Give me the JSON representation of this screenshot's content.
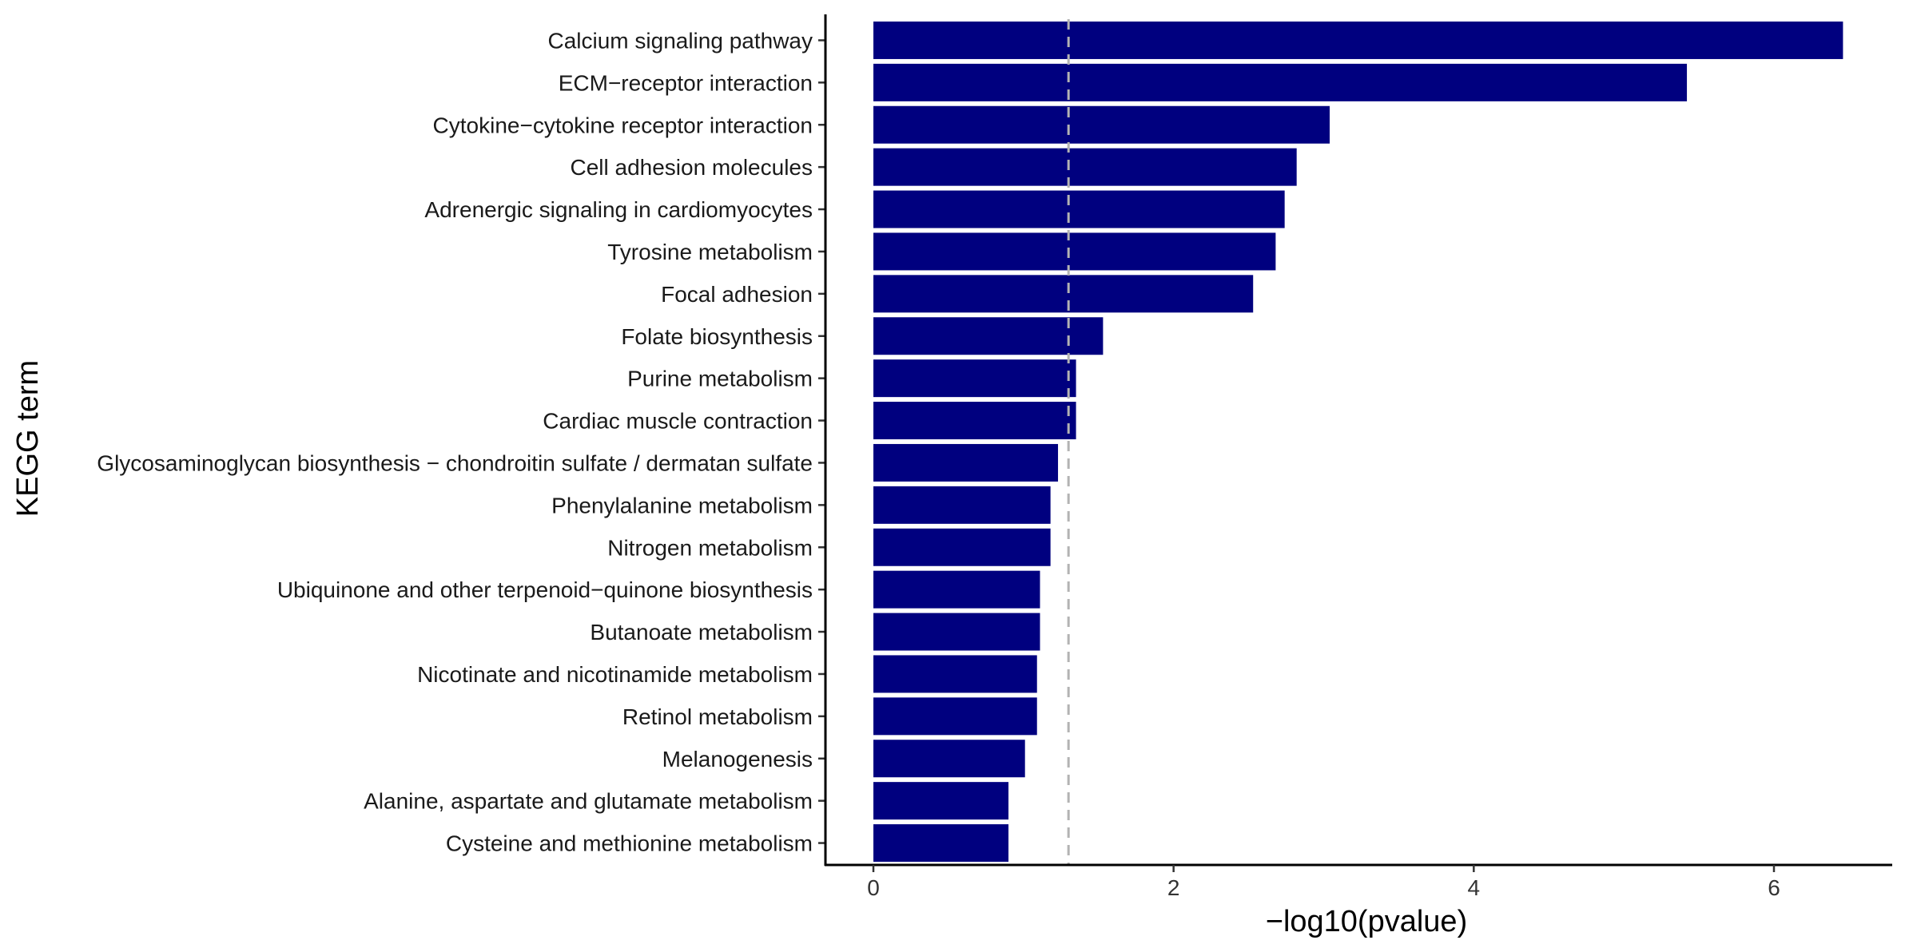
{
  "chart_data": {
    "type": "bar",
    "orientation": "horizontal",
    "title": "",
    "xlabel": "−log10(pvalue)",
    "ylabel": "KEGG term",
    "xlim": [
      -0.32,
      6.75
    ],
    "xticks": [
      0,
      2,
      4,
      6
    ],
    "threshold_line": {
      "value": 1.3,
      "style": "dashed",
      "color": "#b3b3b3"
    },
    "bar_color": "#00007f",
    "grid": false,
    "legend": "none",
    "categories": [
      "Calcium signaling pathway",
      "ECM−receptor interaction",
      "Cytokine−cytokine receptor interaction",
      "Cell adhesion molecules",
      "Adrenergic signaling in cardiomyocytes",
      "Tyrosine metabolism",
      "Focal adhesion",
      "Folate biosynthesis",
      "Purine metabolism",
      "Cardiac muscle contraction",
      "Glycosaminoglycan biosynthesis − chondroitin sulfate / dermatan sulfate",
      "Phenylalanine metabolism",
      "Nitrogen metabolism",
      "Ubiquinone and other terpenoid−quinone biosynthesis",
      "Butanoate metabolism",
      "Nicotinate and nicotinamide metabolism",
      "Retinol metabolism",
      "Melanogenesis",
      "Alanine, aspartate and glutamate metabolism",
      "Cysteine and methionine metabolism"
    ],
    "values": [
      6.46,
      5.42,
      3.04,
      2.82,
      2.74,
      2.68,
      2.53,
      1.53,
      1.35,
      1.35,
      1.23,
      1.18,
      1.18,
      1.11,
      1.11,
      1.09,
      1.09,
      1.01,
      0.9,
      0.9
    ]
  }
}
